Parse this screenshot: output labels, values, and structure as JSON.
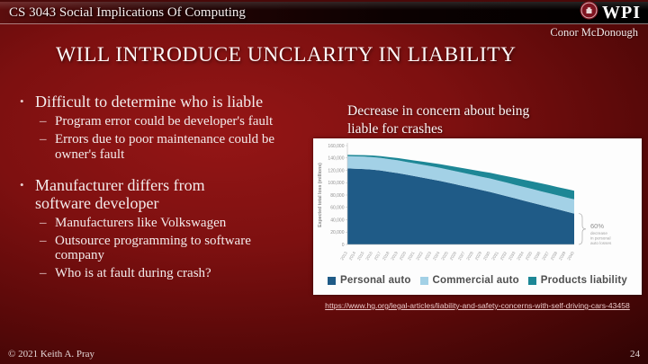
{
  "slide": {
    "header": {
      "course_title": "CS 3043 Social Implications Of Computing",
      "logo_text": "WPI"
    },
    "author": "Conor McDonough",
    "title": "WILL INTRODUCE UNCLARITY IN LIABILITY",
    "markers": {
      "l1": "•",
      "l2": "–"
    },
    "bullets": [
      {
        "level": 1,
        "text": "Difficult to determine who is liable"
      },
      {
        "level": 2,
        "text": "Program error could be developer's fault"
      },
      {
        "level": 2,
        "text": "Errors due to poor maintenance could be owner's fault"
      },
      {
        "level": 1,
        "text": "Manufacturer differs from software developer"
      },
      {
        "level": 2,
        "text": "Manufacturers like Volkswagen"
      },
      {
        "level": 2,
        "text": "Outsource programming to software company"
      },
      {
        "level": 2,
        "text": "Who is at fault during crash?"
      }
    ],
    "chart_caption": "Decrease in concern about being liable for crashes",
    "source_link": "https://www.hg.org/legal-articles/liability-and-safety-concerns-with-self-driving-cars-43458",
    "footer": {
      "copyright": "© 2021 Keith A. Pray",
      "page_number": "24"
    },
    "colors": {
      "background_red": "#8f1414",
      "link": "#eccaca",
      "wpi_crimson": "#a9232e"
    }
  },
  "chart_data": {
    "type": "area",
    "stacked": true,
    "title": "",
    "xlabel": "",
    "ylabel": "Expected total loss (millions)",
    "ylim": [
      0,
      160000
    ],
    "ytick_step": 20000,
    "legend_position": "bottom",
    "x": [
      2013,
      2014,
      2015,
      2016,
      2017,
      2018,
      2019,
      2020,
      2021,
      2022,
      2023,
      2024,
      2025,
      2026,
      2027,
      2028,
      2029,
      2030,
      2031,
      2032,
      2033,
      2034,
      2035,
      2036,
      2037,
      2038,
      2039,
      2040
    ],
    "series": [
      {
        "name": "Personal auto",
        "color": "#1f5b87",
        "values": [
          123000,
          122500,
          122000,
          121000,
          119500,
          117500,
          115500,
          113000,
          110500,
          108000,
          105500,
          103000,
          100000,
          97000,
          94000,
          91000,
          88000,
          85000,
          81500,
          78000,
          74500,
          71000,
          67500,
          64000,
          60500,
          57000,
          53500,
          50000
        ]
      },
      {
        "name": "Commercial auto",
        "color": "#a3d1e6",
        "values": [
          20000,
          20100,
          20200,
          20300,
          20400,
          20500,
          20600,
          20700,
          20800,
          20900,
          21000,
          21100,
          21200,
          21300,
          21400,
          21500,
          21600,
          21700,
          21800,
          21900,
          22000,
          22100,
          22200,
          22300,
          22400,
          22500,
          22700,
          23000
        ]
      },
      {
        "name": "Products liability",
        "color": "#1d8796",
        "values": [
          2000,
          2200,
          2400,
          2700,
          3000,
          3300,
          3700,
          4100,
          4500,
          5000,
          5500,
          6000,
          6500,
          7000,
          7500,
          8100,
          8700,
          9300,
          9900,
          10500,
          11100,
          11700,
          12300,
          12800,
          13200,
          13500,
          13800,
          14000
        ]
      }
    ],
    "annotation": {
      "headline": "60%",
      "caption_lines": [
        "decrease",
        "in personal",
        "auto losses"
      ]
    }
  }
}
